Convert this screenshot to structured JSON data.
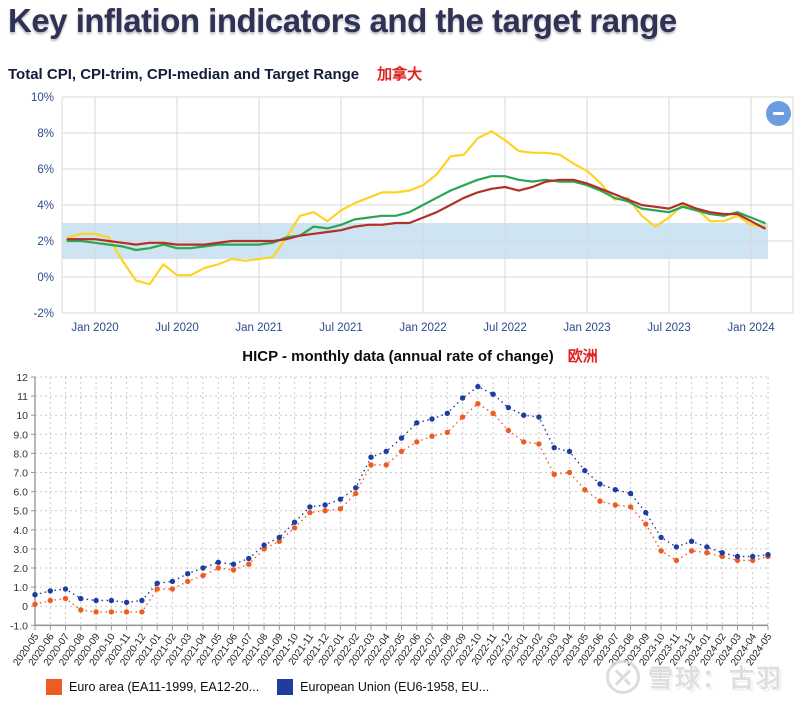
{
  "page": {
    "title": "Key inflation indicators and the target range"
  },
  "controls": {
    "collapse_icon": "minus-icon"
  },
  "watermark": {
    "text": "雪球：古羽",
    "logo": "xueqiu-logo"
  },
  "chart_data": [
    {
      "id": "canada_cpi",
      "type": "line",
      "title": "Total CPI, CPI-trim, CPI-median and Target Range",
      "region_tag": "加拿大",
      "xlabel": "",
      "ylabel": "",
      "ylim": [
        -2,
        10
      ],
      "grid": true,
      "band_color": "#cfe4f2",
      "grid_color": "#d9d9d9",
      "target_range": [
        1,
        3
      ],
      "months": [
        "2019-11",
        "2019-12",
        "2020-01",
        "2020-02",
        "2020-03",
        "2020-04",
        "2020-05",
        "2020-06",
        "2020-07",
        "2020-08",
        "2020-09",
        "2020-10",
        "2020-11",
        "2020-12",
        "2021-01",
        "2021-02",
        "2021-03",
        "2021-04",
        "2021-05",
        "2021-06",
        "2021-07",
        "2021-08",
        "2021-09",
        "2021-10",
        "2021-11",
        "2021-12",
        "2022-01",
        "2022-02",
        "2022-03",
        "2022-04",
        "2022-05",
        "2022-06",
        "2022-07",
        "2022-08",
        "2022-09",
        "2022-10",
        "2022-11",
        "2022-12",
        "2023-01",
        "2023-02",
        "2023-03",
        "2023-04",
        "2023-05",
        "2023-06",
        "2023-07",
        "2023-08",
        "2023-09",
        "2023-10",
        "2023-11",
        "2023-12",
        "2024-01",
        "2024-02"
      ],
      "y_ticks": [
        {
          "v": 10,
          "label": "10%"
        },
        {
          "v": 8,
          "label": "8%"
        },
        {
          "v": 6,
          "label": "6%"
        },
        {
          "v": 4,
          "label": "4%"
        },
        {
          "v": 2,
          "label": "2%"
        },
        {
          "v": 0,
          "label": "0%"
        },
        {
          "v": -2,
          "label": "-2%"
        }
      ],
      "x_ticks": [
        {
          "month": "2020-01",
          "label": "Jan 2020"
        },
        {
          "month": "2020-07",
          "label": "Jul 2020"
        },
        {
          "month": "2021-01",
          "label": "Jan 2021"
        },
        {
          "month": "2021-07",
          "label": "Jul 2021"
        },
        {
          "month": "2022-01",
          "label": "Jan 2022"
        },
        {
          "month": "2022-07",
          "label": "Jul 2022"
        },
        {
          "month": "2023-01",
          "label": "Jan 2023"
        },
        {
          "month": "2023-07",
          "label": "Jul 2023"
        },
        {
          "month": "2024-01",
          "label": "Jan 2024"
        }
      ],
      "series": [
        {
          "name": "Total CPI",
          "color": "#ffd226",
          "values": [
            2.2,
            2.4,
            2.4,
            2.2,
            0.9,
            -0.2,
            -0.4,
            0.7,
            0.1,
            0.1,
            0.5,
            0.7,
            1.0,
            0.9,
            1.0,
            1.1,
            2.2,
            3.4,
            3.6,
            3.1,
            3.7,
            4.1,
            4.4,
            4.7,
            4.7,
            4.8,
            5.1,
            5.7,
            6.7,
            6.8,
            7.7,
            8.1,
            7.6,
            7.0,
            6.9,
            6.9,
            6.8,
            6.3,
            5.9,
            5.2,
            4.3,
            4.4,
            3.4,
            2.8,
            3.3,
            4.0,
            3.8,
            3.1,
            3.1,
            3.4,
            2.9,
            2.8
          ]
        },
        {
          "name": "CPI-trim",
          "color": "#2aa653",
          "values": [
            2.0,
            2.0,
            1.9,
            1.8,
            1.7,
            1.5,
            1.6,
            1.8,
            1.6,
            1.6,
            1.7,
            1.8,
            1.8,
            1.8,
            1.8,
            1.9,
            2.2,
            2.3,
            2.8,
            2.7,
            2.9,
            3.2,
            3.3,
            3.4,
            3.4,
            3.6,
            4.0,
            4.4,
            4.8,
            5.1,
            5.4,
            5.6,
            5.6,
            5.4,
            5.3,
            5.4,
            5.3,
            5.3,
            5.1,
            4.8,
            4.4,
            4.2,
            3.8,
            3.7,
            3.6,
            3.9,
            3.7,
            3.5,
            3.4,
            3.6,
            3.3,
            3.0
          ]
        },
        {
          "name": "CPI-median",
          "color": "#b13129",
          "values": [
            2.1,
            2.1,
            2.1,
            2.0,
            1.9,
            1.8,
            1.9,
            1.9,
            1.8,
            1.8,
            1.8,
            1.9,
            2.0,
            2.0,
            2.0,
            2.0,
            2.1,
            2.3,
            2.4,
            2.5,
            2.6,
            2.8,
            2.9,
            2.9,
            3.0,
            3.0,
            3.3,
            3.6,
            4.0,
            4.4,
            4.7,
            4.9,
            5.0,
            4.8,
            5.0,
            5.3,
            5.4,
            5.4,
            5.2,
            4.9,
            4.6,
            4.3,
            4.0,
            3.9,
            3.8,
            4.1,
            3.8,
            3.6,
            3.5,
            3.5,
            3.1,
            2.7
          ]
        }
      ]
    },
    {
      "id": "hicp",
      "type": "scatter",
      "title": "HICP - monthly data (annual rate of change)",
      "region_tag": "欧洲",
      "xlabel": "",
      "ylabel": "",
      "ylim": [
        -1,
        12
      ],
      "grid": true,
      "grid_color": "#c9c9c9",
      "axis_color": "#999999",
      "legend_position": "bottom",
      "x": [
        "2020-05",
        "2020-06",
        "2020-07",
        "2020-08",
        "2020-09",
        "2020-10",
        "2020-11",
        "2020-12",
        "2021-01",
        "2021-02",
        "2021-03",
        "2021-04",
        "2021-05",
        "2021-06",
        "2021-07",
        "2021-08",
        "2021-09",
        "2021-10",
        "2021-11",
        "2021-12",
        "2022-01",
        "2022-02",
        "2022-03",
        "2022-04",
        "2022-05",
        "2022-06",
        "2022-07",
        "2022-08",
        "2022-09",
        "2022-10",
        "2022-11",
        "2022-12",
        "2023-01",
        "2023-02",
        "2023-03",
        "2023-04",
        "2023-05",
        "2023-06",
        "2023-07",
        "2023-08",
        "2023-09",
        "2023-10",
        "2023-11",
        "2023-12",
        "2024-01",
        "2024-02",
        "2024-03",
        "2024-04",
        "2024-05"
      ],
      "y_ticks": [
        {
          "v": 12,
          "label": "12"
        },
        {
          "v": 11,
          "label": "11"
        },
        {
          "v": 10,
          "label": "10"
        },
        {
          "v": 9,
          "label": "9.0"
        },
        {
          "v": 8,
          "label": "8.0"
        },
        {
          "v": 7,
          "label": "7.0"
        },
        {
          "v": 6,
          "label": "6.0"
        },
        {
          "v": 5,
          "label": "5.0"
        },
        {
          "v": 4,
          "label": "4.0"
        },
        {
          "v": 3,
          "label": "3.0"
        },
        {
          "v": 2,
          "label": "2.0"
        },
        {
          "v": 1,
          "label": "1.0"
        },
        {
          "v": 0,
          "label": "0"
        },
        {
          "v": -1,
          "label": "-1.0"
        }
      ],
      "series": [
        {
          "name": "Euro area (EA11-1999, EA12-20...",
          "color": "#ee5c23",
          "values": [
            0.1,
            0.3,
            0.4,
            -0.2,
            -0.3,
            -0.3,
            -0.3,
            -0.3,
            0.9,
            0.9,
            1.3,
            1.6,
            2.0,
            1.9,
            2.2,
            3.0,
            3.4,
            4.1,
            4.9,
            5.0,
            5.1,
            5.9,
            7.4,
            7.4,
            8.1,
            8.6,
            8.9,
            9.1,
            9.9,
            10.6,
            10.1,
            9.2,
            8.6,
            8.5,
            6.9,
            7.0,
            6.1,
            5.5,
            5.3,
            5.2,
            4.3,
            2.9,
            2.4,
            2.9,
            2.8,
            2.6,
            2.4,
            2.4,
            2.6
          ]
        },
        {
          "name": "European Union (EU6-1958, EU...",
          "color": "#1e3da0",
          "values": [
            0.6,
            0.8,
            0.9,
            0.4,
            0.3,
            0.3,
            0.2,
            0.3,
            1.2,
            1.3,
            1.7,
            2.0,
            2.3,
            2.2,
            2.5,
            3.2,
            3.6,
            4.4,
            5.2,
            5.3,
            5.6,
            6.2,
            7.8,
            8.1,
            8.8,
            9.6,
            9.8,
            10.1,
            10.9,
            11.5,
            11.1,
            10.4,
            10.0,
            9.9,
            8.3,
            8.1,
            7.1,
            6.4,
            6.1,
            5.9,
            4.9,
            3.6,
            3.1,
            3.4,
            3.1,
            2.8,
            2.6,
            2.6,
            2.7
          ]
        }
      ]
    }
  ]
}
